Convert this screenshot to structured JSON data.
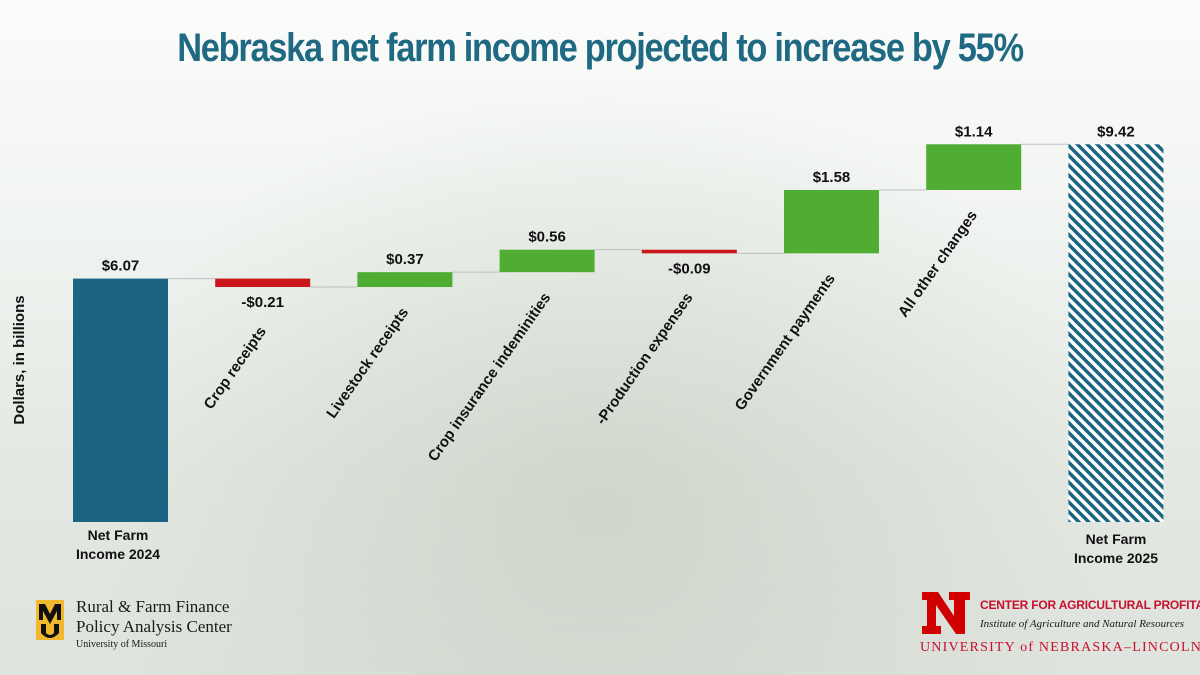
{
  "title": "Nebraska net farm income projected to increase by 55%",
  "chart_data": {
    "type": "bar",
    "subtype": "waterfall",
    "ylabel": "Dollars, in billions",
    "categories": [
      "Net Farm Income 2024",
      "Crop receipts",
      "Livestock receipts",
      "Crop insurance indeminities",
      "-Production expenses",
      "Government payments",
      "All other changes",
      "Net Farm Income 2025"
    ],
    "values": [
      6.07,
      -0.21,
      0.37,
      0.56,
      -0.09,
      1.58,
      1.14,
      9.42
    ],
    "value_labels": [
      "$6.07",
      "-$0.21",
      "$0.37",
      "$0.56",
      "-$0.09",
      "$1.58",
      "$1.14",
      "$9.42"
    ],
    "kinds": [
      "total",
      "change",
      "change",
      "change",
      "change",
      "change",
      "change",
      "total"
    ],
    "end_labels": {
      "start": [
        "Net Farm",
        "Income 2024"
      ],
      "end": [
        "Net Farm",
        "Income 2025"
      ]
    },
    "colors": {
      "start_total": "#1b6582",
      "end_total": "#1b6582",
      "increase": "#4ead32",
      "decrease": "#c8161b"
    },
    "ylim": [
      0,
      9.42
    ],
    "grid": false,
    "legend": "none"
  },
  "logos": {
    "left": {
      "mark": "MU",
      "line1": "Rural & Farm Finance",
      "line2": "Policy Analysis Center",
      "line3": "University of Missouri"
    },
    "right": {
      "mark": "N",
      "line1": "CENTER FOR AGRICULTURAL PROFITABILITY",
      "line2": "Institute of Agriculture and Natural Resources",
      "line3": "UNIVERSITY of NEBRASKA–LINCOLN"
    }
  }
}
